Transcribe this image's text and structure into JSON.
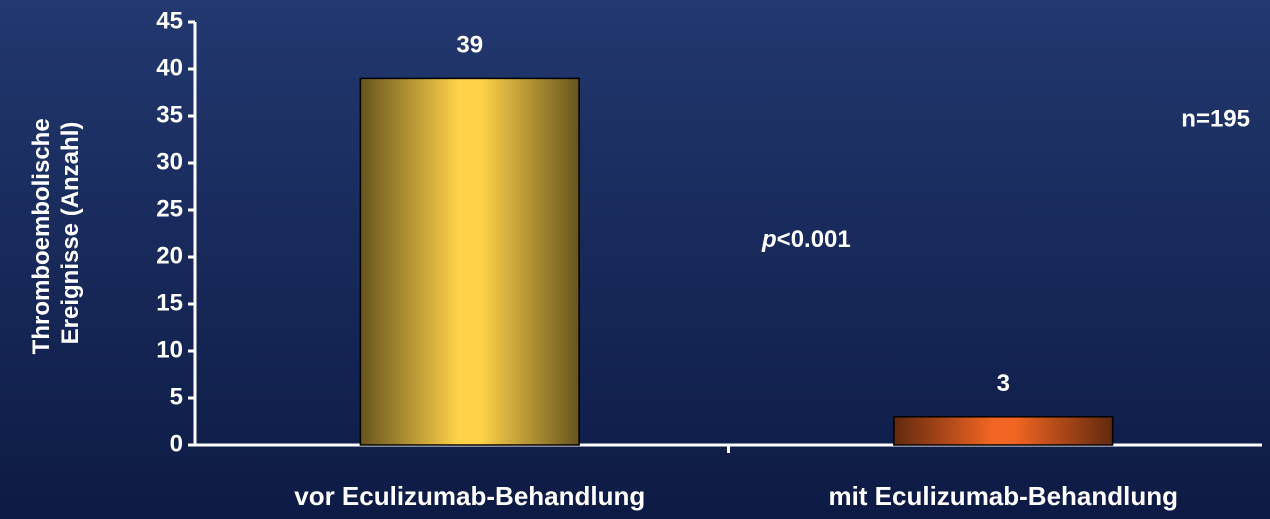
{
  "chart_data": {
    "type": "bar",
    "y_label": [
      "Thromboembolische",
      "Ereignisse (Anzahl)"
    ],
    "categories": [
      "vor Eculizumab-Behandlung",
      "mit Eculizumab-Behandlung"
    ],
    "values": [
      39,
      3
    ],
    "colors": [
      "#ffd24a",
      "#f26522"
    ],
    "ylim": [
      0,
      45
    ],
    "yticks": [
      0,
      5,
      10,
      15,
      20,
      25,
      30,
      35,
      40,
      45
    ],
    "annotations": [
      {
        "text": "n=195"
      },
      {
        "parts": [
          "p",
          "<0.001"
        ]
      }
    ]
  }
}
